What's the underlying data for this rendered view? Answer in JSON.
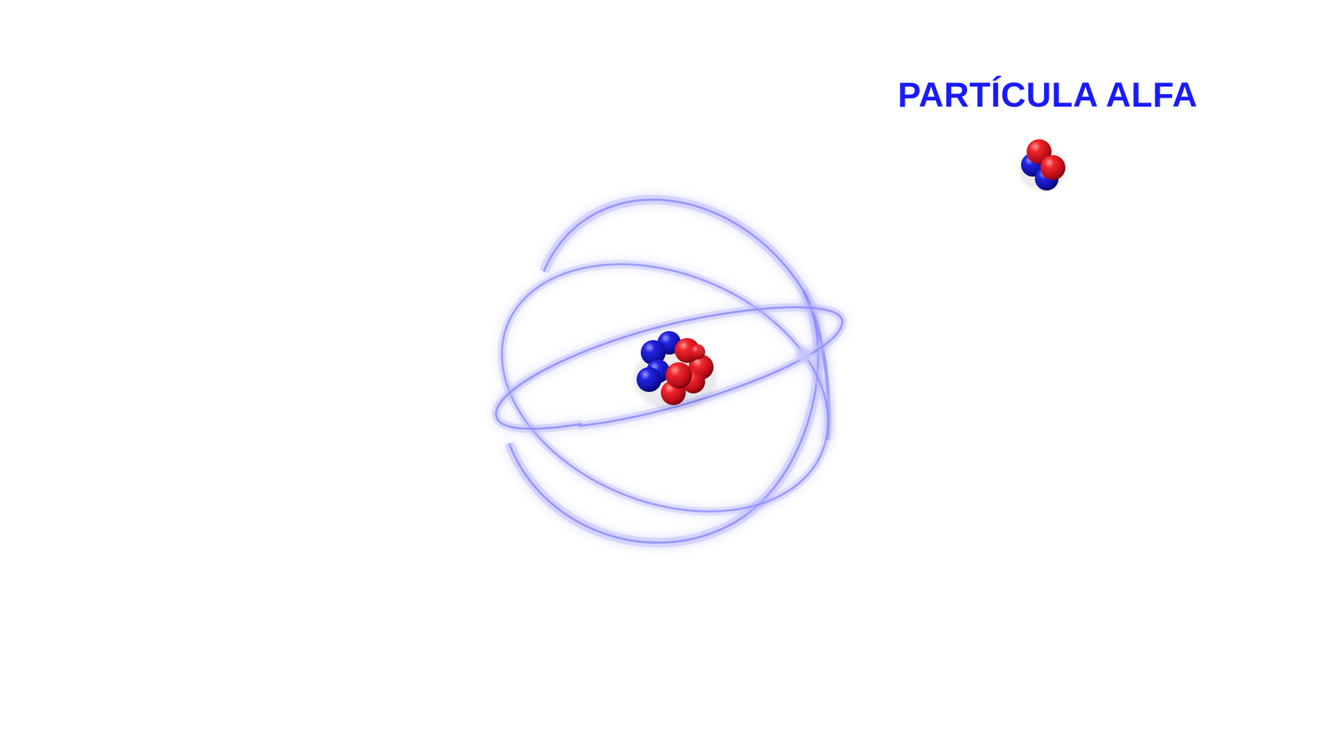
{
  "title": "PARTÍCULA ALFA",
  "colors": {
    "title": "#1a1aff",
    "proton": "#e8141e",
    "neutron": "#1a1ad6",
    "orbit": "#8c8cff",
    "background": "#ffffff"
  },
  "atom": {
    "nucleus": {
      "protons": 6,
      "neutrons": 4
    },
    "orbit_count": 3
  },
  "alpha_particle": {
    "protons": 2,
    "neutrons": 2
  }
}
